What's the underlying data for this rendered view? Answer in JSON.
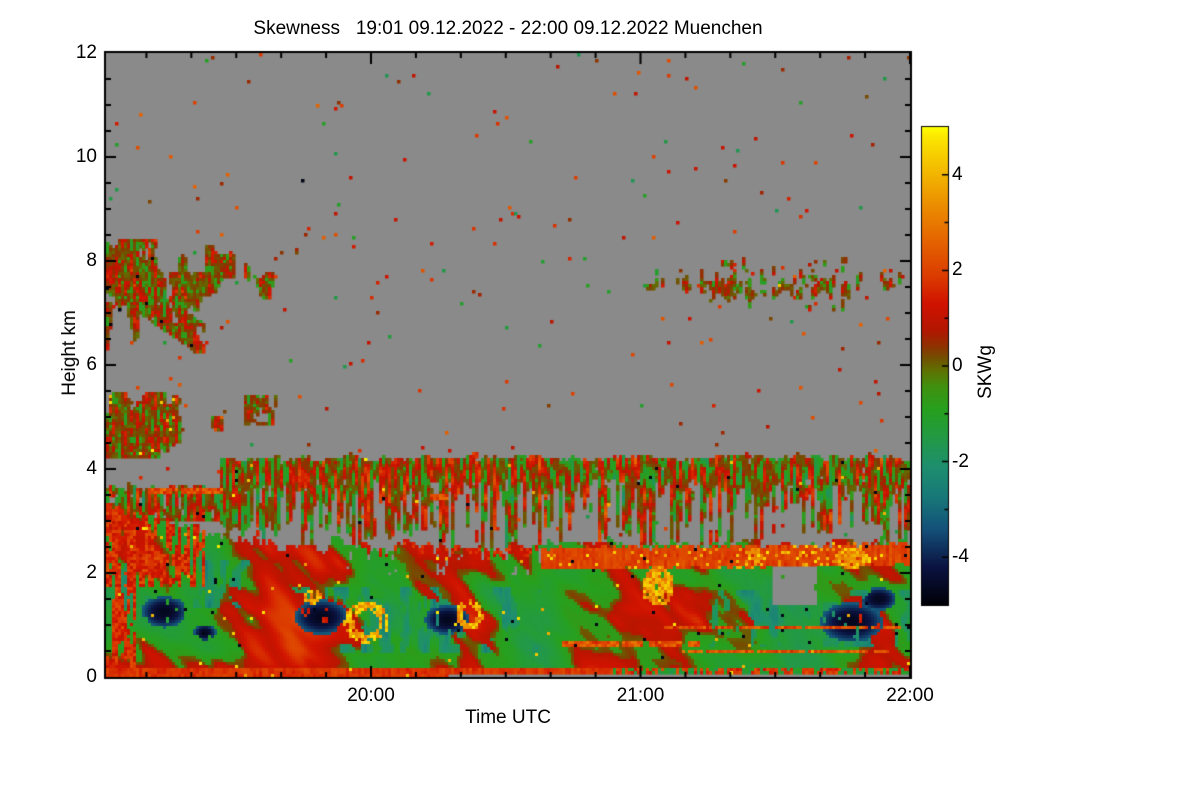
{
  "chart_data": {
    "type": "heatmap",
    "title": "Skewness   19:01 09.12.2022 - 22:00 09.12.2022 Muenchen",
    "variable": "Skewness",
    "time_start": "19:01",
    "time_end": "22:00",
    "date": "09.12.2022",
    "station": "Muenchen",
    "xlabel": "Time UTC",
    "ylabel": "Height km",
    "x_span_minutes": 179,
    "x_ticks": [
      {
        "minute": 59,
        "label": "20:00"
      },
      {
        "minute": 119,
        "label": "21:00"
      },
      {
        "minute": 179,
        "label": "22:00"
      }
    ],
    "x_minor_tick_minutes": 10,
    "ylim": [
      0,
      12
    ],
    "y_ticks": [
      0,
      2,
      4,
      6,
      8,
      10,
      12
    ],
    "y_minor_tick_km": 0.5,
    "grid": false,
    "no_data_color": "#8a8a8a",
    "colorbar": {
      "label": "SKWg",
      "min": -5,
      "max": 5,
      "ticks": [
        4,
        2,
        0,
        -2,
        -4
      ],
      "minor_step": 1,
      "stops": [
        [
          -5,
          "#000006"
        ],
        [
          -4.2,
          "#0b1342"
        ],
        [
          -3.4,
          "#14527a"
        ],
        [
          -2.7,
          "#187a78"
        ],
        [
          -2.1,
          "#1e8f6e"
        ],
        [
          -1.4,
          "#239b3e"
        ],
        [
          -0.9,
          "#27a01e"
        ],
        [
          -0.45,
          "#3f9210"
        ],
        [
          -0.1,
          "#5f7202"
        ],
        [
          0.15,
          "#715200"
        ],
        [
          0.4,
          "#8d3300"
        ],
        [
          0.75,
          "#b31600"
        ],
        [
          1.3,
          "#d01300"
        ],
        [
          1.9,
          "#dc3d00"
        ],
        [
          2.6,
          "#e56300"
        ],
        [
          3.4,
          "#ec9000"
        ],
        [
          4.2,
          "#f4c100"
        ],
        [
          4.8,
          "#fbe800"
        ],
        [
          5,
          "#ffff00"
        ]
      ]
    },
    "layers": [
      {
        "name": "speckle",
        "description": "sparse positive-skewness specks over no-data area",
        "density": 0.005
      },
      {
        "name": "cloud-upper-left",
        "t_min": 0,
        "t_max": 47,
        "h_min": 6.25,
        "h_max": 8.4,
        "center_h": 7.7,
        "values": [
          -1.2,
          2.0
        ]
      },
      {
        "name": "hook",
        "t_min": 7,
        "t_max": 22,
        "h_start": 7.35,
        "slope": -0.06,
        "half_width": 0.33
      },
      {
        "name": "cloud-mid-left",
        "t_min": 0,
        "t_max": 40,
        "h_min": 4.2,
        "h_max": 5.5,
        "center_h": 4.75,
        "blob": [
          31,
          38.5,
          4.85,
          5.4
        ],
        "values": [
          -1.3,
          1.8
        ]
      },
      {
        "name": "cloud-right",
        "t_min": 95,
        "t_max": 179,
        "h_min": 7.02,
        "h_max": 8.05,
        "center_h": 7.55,
        "gap_t": [
          168,
          172
        ],
        "values": [
          -1.0,
          2.0
        ]
      },
      {
        "name": "virga",
        "t_start": 25.5,
        "cap_top": 4.22,
        "cap_bottom": 3.7,
        "streak_bottom": 2.62,
        "left_layer": [
          3.02,
          3.66
        ],
        "values": [
          -1.8,
          2.3
        ]
      },
      {
        "name": "mass",
        "top_left": 3.28,
        "top_mid": 2.55,
        "top_right": 2.56,
        "values": [
          -2.5,
          2.2
        ]
      },
      {
        "name": "teal",
        "regions": [
          [
            36,
            97,
            0.45,
            1.75
          ],
          [
            132,
            179,
            0.55,
            1.65
          ],
          [
            2,
            32,
            1.35,
            2.25
          ]
        ],
        "values": [
          -2.6,
          -1.6
        ]
      },
      {
        "name": "navy",
        "ellipses": [
          [
            13,
            1.25,
            5,
            0.3
          ],
          [
            22,
            0.85,
            2.5,
            0.16
          ],
          [
            48,
            1.15,
            6,
            0.33
          ],
          [
            76,
            1.1,
            5,
            0.28
          ],
          [
            166,
            1.05,
            7,
            0.38
          ],
          [
            172,
            1.5,
            4,
            0.22
          ]
        ],
        "values": [
          -4.7,
          -3.2
        ]
      },
      {
        "name": "red-band",
        "t_start": 97,
        "center": 2.27,
        "half_width": 0.21,
        "values": [
          1.3,
          2.7
        ]
      },
      {
        "name": "yellow",
        "ellipses": [
          [
            58,
            1.05,
            5,
            0.4,
            1
          ],
          [
            81,
            1.2,
            3,
            0.3,
            1
          ],
          [
            46,
            1.55,
            2,
            0.14,
            0
          ],
          [
            123,
            1.75,
            3.5,
            0.38,
            0
          ],
          [
            166,
            2.28,
            4,
            0.2,
            0
          ],
          [
            144,
            2.3,
            2,
            0.16,
            0
          ]
        ],
        "values": [
          2.6,
          4.8
        ]
      },
      {
        "name": "dashes",
        "segments": [
          [
            10,
            27,
            3.57
          ],
          [
            72,
            76,
            3.46
          ],
          [
            96,
            99,
            3.46
          ],
          [
            100,
            132,
            0.63
          ],
          [
            124,
            177,
            0.95
          ],
          [
            128,
            174,
            0.5
          ]
        ],
        "values": [
          1.5,
          3.0
        ]
      },
      {
        "name": "bottom",
        "h_top": 0.17,
        "red_until": 113,
        "nodata_after": 76,
        "nodata_h": 0.075,
        "values": [
          1.1,
          2.4
        ]
      },
      {
        "name": "holes",
        "wedge": [
          148,
          158.5,
          1.38,
          2.12
        ],
        "midholes": [
          52,
          97,
          1.95,
          2.75
        ]
      }
    ]
  }
}
